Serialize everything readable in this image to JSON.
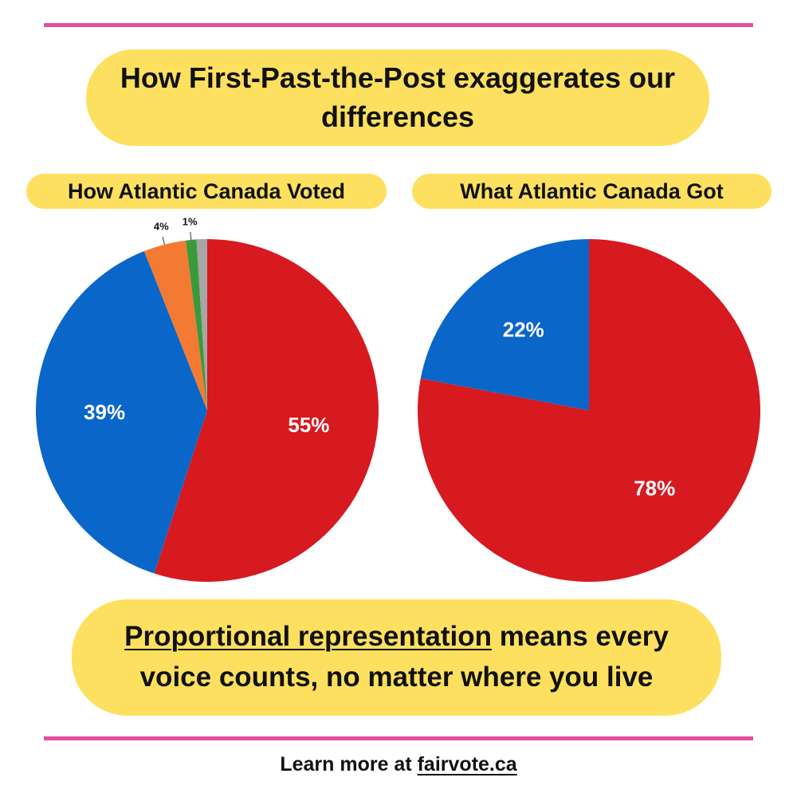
{
  "header": {
    "title": "How First-Past-the-Post exaggerates our differences"
  },
  "chart_data": [
    {
      "type": "pie",
      "title": "How Atlantic Canada Voted",
      "values": [
        55,
        39,
        4,
        1,
        1
      ],
      "value_labels": [
        "55%",
        "39%",
        "4%",
        "1%",
        null
      ],
      "colors": [
        "#d71920",
        "#0a66c9",
        "#f27a32",
        "#3a9a3a",
        "#a6a6a6"
      ]
    },
    {
      "type": "pie",
      "title": "What Atlantic Canada Got",
      "values": [
        78,
        22
      ],
      "value_labels": [
        "78%",
        "22%"
      ],
      "colors": [
        "#d71920",
        "#0a66c9"
      ]
    }
  ],
  "banner": {
    "emphasis": "Proportional representation",
    "text": "means every voice counts, no matter where you live"
  },
  "footer": {
    "prefix": "Learn more at",
    "link": "fairvote.ca"
  }
}
